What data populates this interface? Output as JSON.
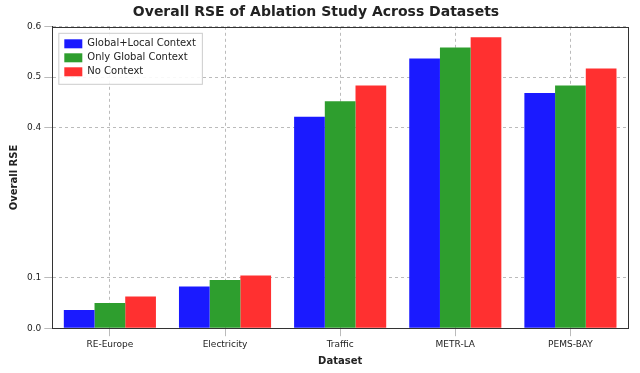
{
  "chart_data": {
    "type": "bar",
    "title": "Overall RSE of Ablation Study Across Datasets",
    "x_label": "Dataset",
    "y_label": "Overall RSE",
    "categories": [
      "RE-Europe",
      "Electricity",
      "Traffic",
      "METR-LA",
      "PEMS-BAY"
    ],
    "series": [
      {
        "name": "Global+Local Context",
        "color": "#1a1aff",
        "values": [
          0.036,
          0.083,
          0.421,
          0.537,
          0.468
        ]
      },
      {
        "name": "Only Global Context",
        "color": "#2e9e2e",
        "values": [
          0.05,
          0.096,
          0.452,
          0.559,
          0.483
        ]
      },
      {
        "name": "No Context",
        "color": "#ff3030",
        "values": [
          0.063,
          0.105,
          0.483,
          0.579,
          0.517
        ]
      }
    ],
    "ylim": [
      0,
      0.6
    ],
    "yticks": [
      {
        "value": 0,
        "label": "0.0"
      },
      0.1,
      0.4,
      0.5,
      0.6
    ],
    "grid": true,
    "legend": "upper left"
  }
}
